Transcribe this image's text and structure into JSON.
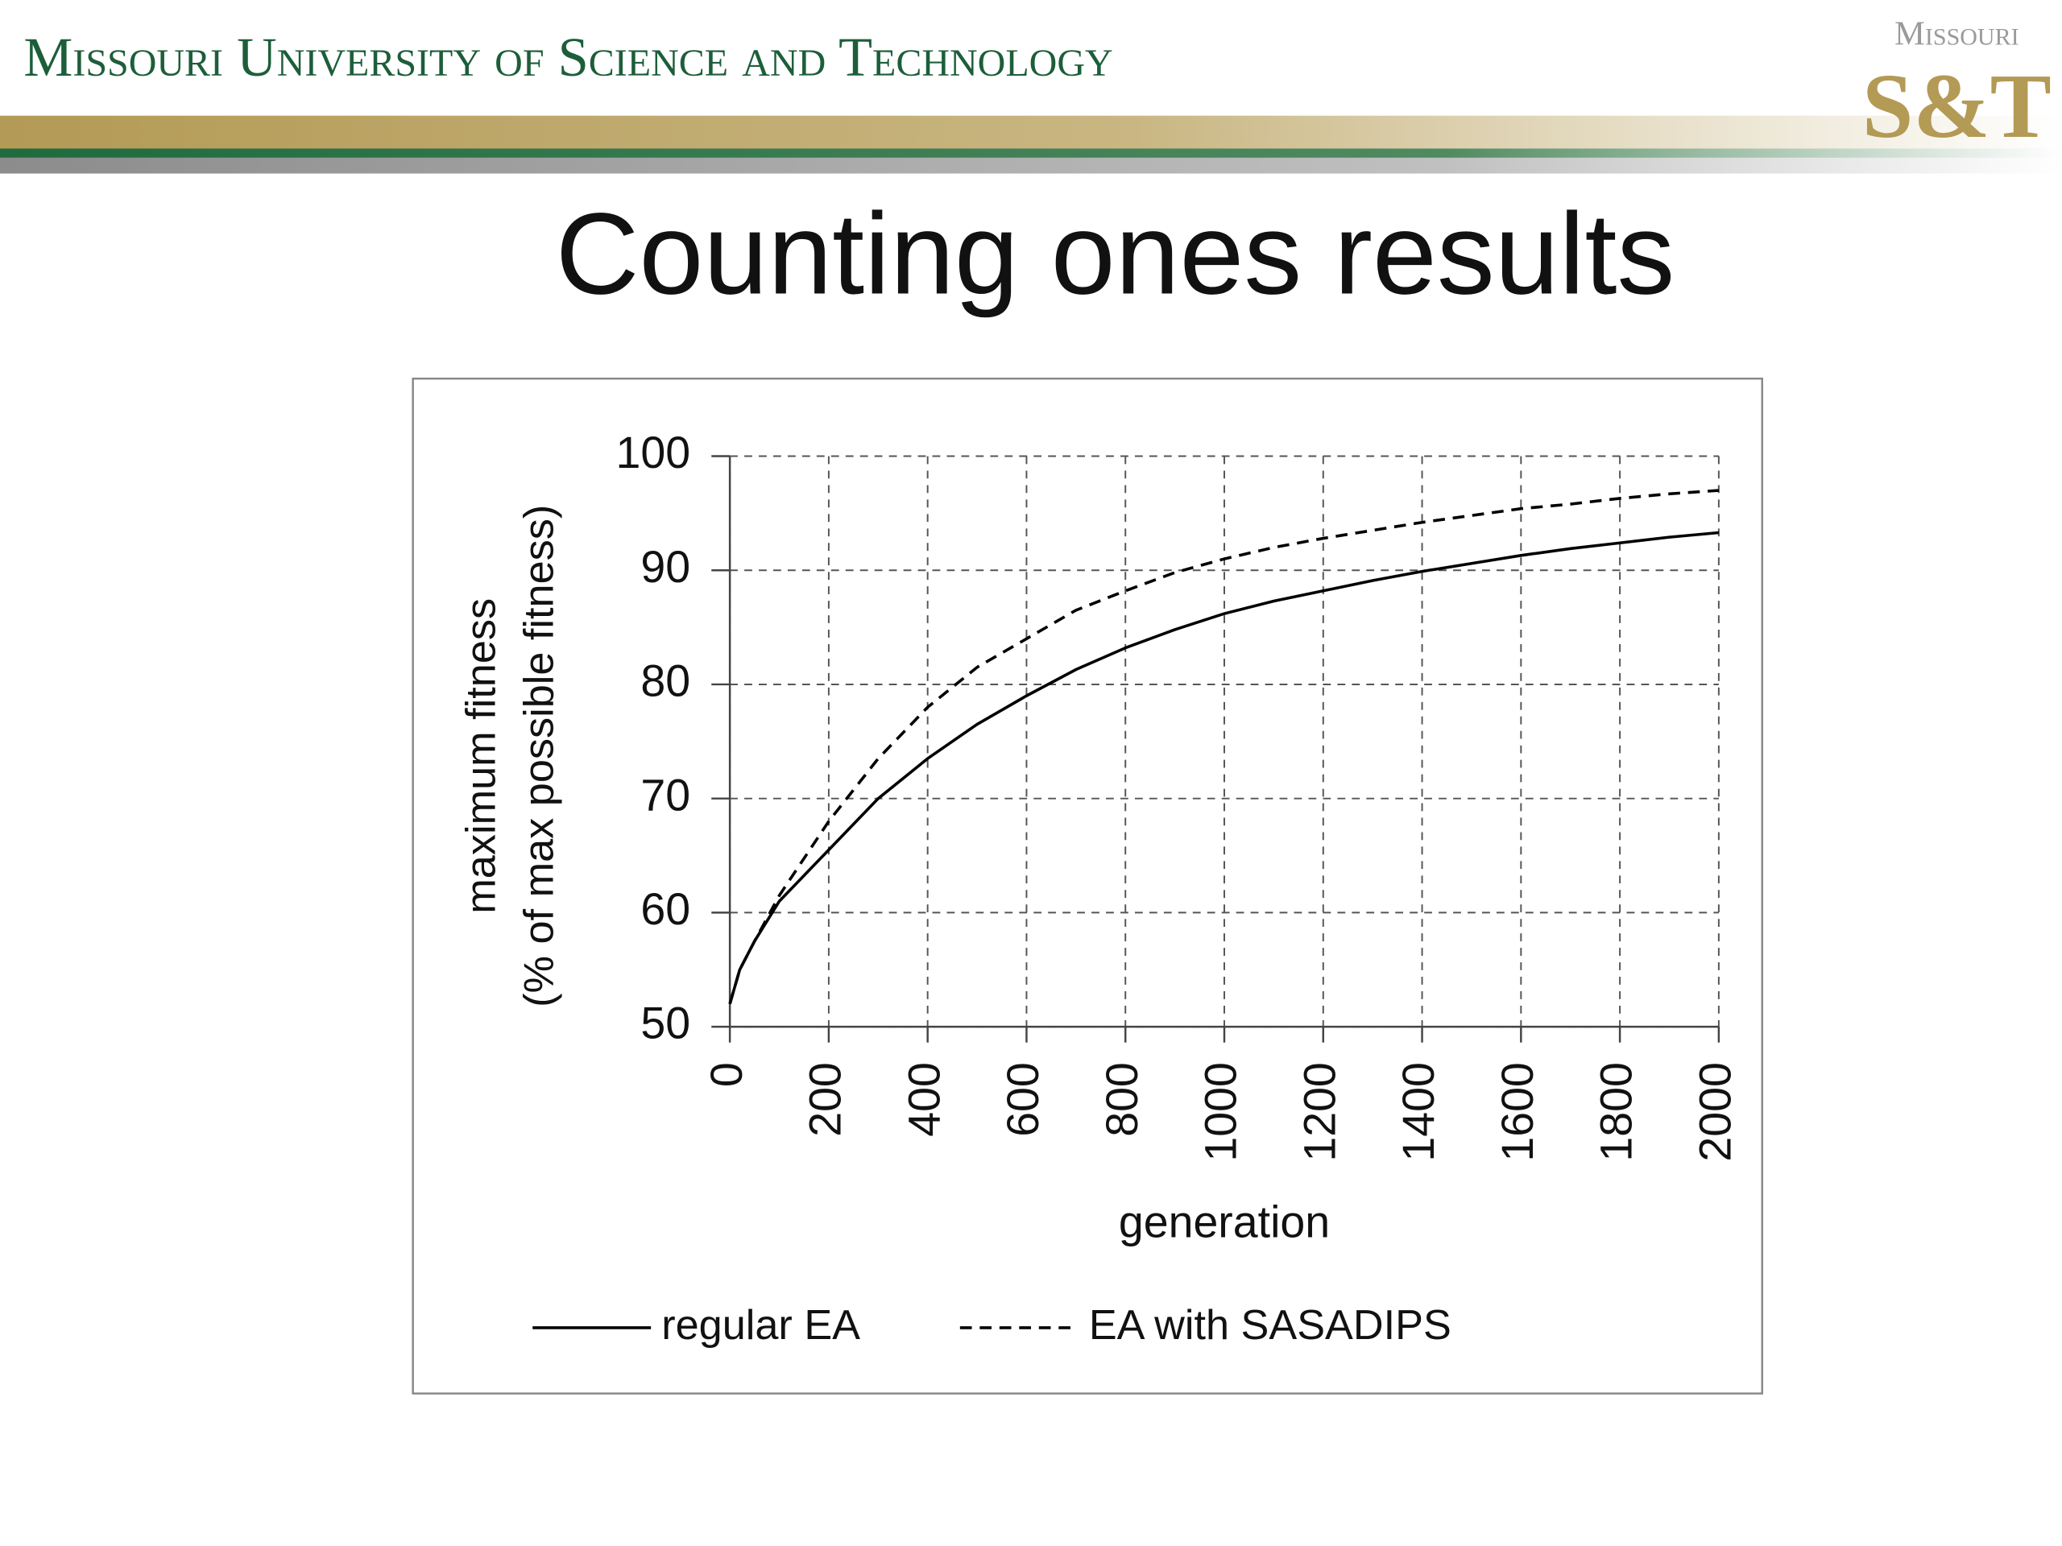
{
  "header": {
    "university": "Missouri University of Science and Technology",
    "logo_top": "Missouri",
    "logo_main": "S&T"
  },
  "chart_data": {
    "type": "line",
    "title": "Counting ones results",
    "xlabel": "generation",
    "ylabel": [
      "maximum fitness",
      "(% of max possible fitness)"
    ],
    "x": [
      0,
      20,
      50,
      100,
      200,
      300,
      400,
      500,
      600,
      700,
      800,
      900,
      1000,
      1100,
      1200,
      1300,
      1400,
      1500,
      1600,
      1700,
      1800,
      1900,
      2000
    ],
    "series": [
      {
        "name": "regular EA",
        "color": "#000000",
        "style": "solid",
        "values": [
          52,
          55,
          57.5,
          61,
          65.5,
          70,
          73.5,
          76.5,
          79,
          81.3,
          83.2,
          84.8,
          86.2,
          87.3,
          88.2,
          89.1,
          89.9,
          90.6,
          91.3,
          91.9,
          92.4,
          92.9,
          93.3
        ]
      },
      {
        "name": "EA with SASADIPS",
        "color": "#000000",
        "style": "dashed",
        "values": [
          52,
          55,
          57.5,
          61.5,
          68,
          73.5,
          78,
          81.5,
          84,
          86.5,
          88.2,
          89.8,
          91,
          92,
          92.8,
          93.5,
          94.2,
          94.8,
          95.4,
          95.8,
          96.3,
          96.7,
          97
        ]
      }
    ],
    "xlim": [
      0,
      2000
    ],
    "xticks": [
      0,
      200,
      400,
      600,
      800,
      1000,
      1200,
      1400,
      1600,
      1800,
      2000
    ],
    "ylim": [
      50,
      100
    ],
    "yticks": [
      50,
      60,
      70,
      80,
      90,
      100
    ],
    "grid": true,
    "legend": "bottom"
  }
}
